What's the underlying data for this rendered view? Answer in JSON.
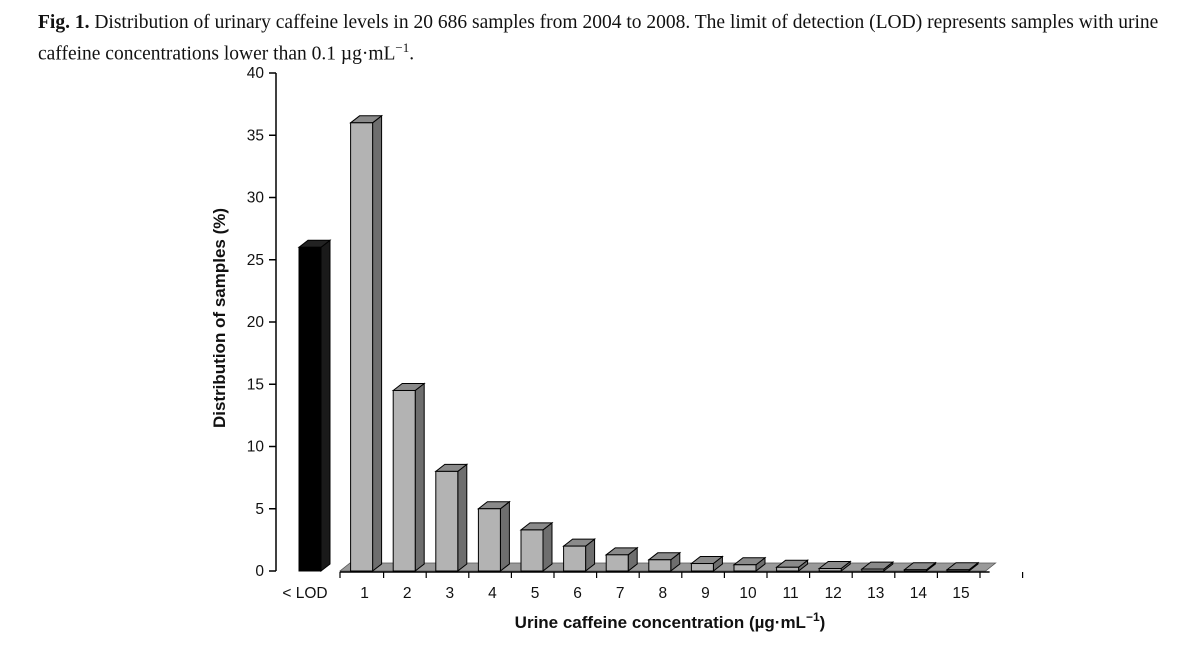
{
  "caption": {
    "label": "Fig. 1.",
    "text": "Distribution of urinary caffeine levels in 20 686 samples from 2004 to 2008. The limit of detection (LOD) represents samples with urine caffeine concentrations lower than 0.1 µg·mL",
    "superscript": "−1",
    "end": "."
  },
  "chart_data": {
    "type": "bar",
    "xlabel": "Urine caffeine concentration (µg·mL",
    "xlabel_sup": "−1",
    "xlabel_end": ")",
    "ylabel": "Distribution of samples (%)",
    "ylim": [
      0,
      40
    ],
    "yticks": [
      "0",
      "5",
      "10",
      "15",
      "20",
      "25",
      "30",
      "35",
      "40"
    ],
    "categories": [
      "< LOD",
      "1",
      "2",
      "3",
      "4",
      "5",
      "6",
      "7",
      "8",
      "9",
      "10",
      "11",
      "12",
      "13",
      "14",
      "15"
    ],
    "values": [
      26,
      36,
      14.5,
      8,
      5,
      3.3,
      2,
      1.3,
      0.9,
      0.6,
      0.5,
      0.3,
      0.2,
      0.15,
      0.1,
      0.1
    ],
    "colors": {
      "lod_front": "#000000",
      "lod_side": "#1a1a1a",
      "bar_front": "#b3b3b3",
      "bar_side": "#6e6e6e",
      "bar_top": "#8a8a8a",
      "floor": "#7a7a7a"
    }
  }
}
